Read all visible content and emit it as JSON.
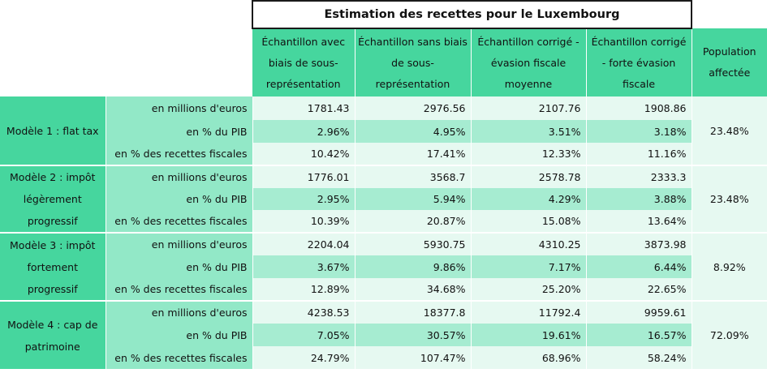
{
  "title": "Estimation des recettes pour le Luxembourg",
  "columns": [
    "Échantillon avec biais de sous-représentation",
    "Échantillon sans biais de sous-représentation",
    "Échantillon corrigé - évasion fiscale moyenne",
    "Échantillon corrigé - forte évasion fiscale"
  ],
  "population_header": "Population affectée",
  "metrics": [
    "en millions d'euros",
    "en % du PIB",
    "en % des recettes fiscales"
  ],
  "models": [
    {
      "label": "Modèle 1 : flat tax",
      "population": "23.48%",
      "rows": [
        [
          "1781.43",
          "2976.56",
          "2107.76",
          "1908.86"
        ],
        [
          "2.96%",
          "4.95%",
          "3.51%",
          "3.18%"
        ],
        [
          "10.42%",
          "17.41%",
          "12.33%",
          "11.16%"
        ]
      ]
    },
    {
      "label": "Modèle 2 : impôt légèrement progressif",
      "population": "23.48%",
      "rows": [
        [
          "1776.01",
          "3568.7",
          "2578.78",
          "2333.3"
        ],
        [
          "2.95%",
          "5.94%",
          "4.29%",
          "3.88%"
        ],
        [
          "10.39%",
          "20.87%",
          "15.08%",
          "13.64%"
        ]
      ]
    },
    {
      "label": "Modèle 3 : impôt fortement progressif",
      "population": "8.92%",
      "rows": [
        [
          "2204.04",
          "5930.75",
          "4310.25",
          "3873.98"
        ],
        [
          "3.67%",
          "9.86%",
          "7.17%",
          "6.44%"
        ],
        [
          "12.89%",
          "34.68%",
          "25.20%",
          "22.65%"
        ]
      ]
    },
    {
      "label": "Modèle 4 : cap de patrimoine",
      "population": "72.09%",
      "rows": [
        [
          "4238.53",
          "18377.8",
          "11792.4",
          "9959.61"
        ],
        [
          "7.05%",
          "30.57%",
          "19.61%",
          "16.57%"
        ],
        [
          "24.79%",
          "107.47%",
          "68.96%",
          "58.24%"
        ]
      ]
    }
  ]
}
